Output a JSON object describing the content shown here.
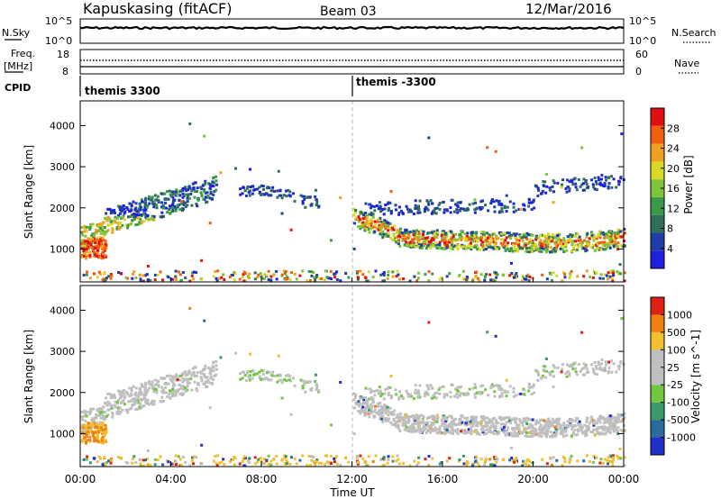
{
  "header": {
    "station": "Kapuskasing (fitACF)",
    "beam": "Beam 03",
    "date": "12/Mar/2016"
  },
  "top_panels": {
    "nsky_label": "N.Sky",
    "nsky_ticks": [
      "10^5",
      "10^0"
    ],
    "nsearch_label": "N.Search",
    "nsearch_ticks": [
      "10^5",
      "10^0"
    ],
    "freq_label": "Freq.",
    "freq_unit": "[MHz]",
    "freq_ticks": [
      "18",
      "8"
    ],
    "nave_label": "Nave",
    "nave_ticks": [
      "60",
      "0"
    ],
    "cpid_label": "CPID",
    "cpid_segments": [
      {
        "text": "themis 3300",
        "start_hour": 0
      },
      {
        "text": "themis -3300",
        "start_hour": 12
      }
    ]
  },
  "chart_data": [
    {
      "type": "heatmap",
      "name": "power",
      "ylabel": "Slant Range [km]",
      "yticks": [
        "4000",
        "3000",
        "2000",
        "1000"
      ],
      "ylim": [
        200,
        4600
      ],
      "xlim": [
        0,
        24
      ],
      "colorbar": {
        "label": "Power [dB]",
        "ticks": [
          "28",
          "24",
          "20",
          "16",
          "12",
          "8",
          "4"
        ],
        "colors": [
          "#1f1fe0",
          "#1f3ea8",
          "#2f6e5a",
          "#3a9a48",
          "#7cc43a",
          "#d8d828",
          "#f0a020",
          "#f06010",
          "#e01010"
        ]
      }
    },
    {
      "type": "heatmap",
      "name": "velocity",
      "ylabel": "Slant Range [km]",
      "yticks": [
        "4000",
        "3000",
        "2000",
        "1000"
      ],
      "ylim": [
        200,
        4600
      ],
      "xlim": [
        0,
        24
      ],
      "colorbar": {
        "label": "Velocity  [m s^-1]",
        "ticks": [
          "1000",
          "500",
          "100",
          "25",
          "-25",
          "-100",
          "-500",
          "-1000"
        ],
        "colors": [
          "#2030c8",
          "#2a6aa0",
          "#3a9a6a",
          "#70c840",
          "#bfbfbf",
          "#bfbfbf",
          "#f0c030",
          "#f08010",
          "#e02010"
        ]
      }
    }
  ],
  "x_axis": {
    "ticks": [
      "00:00",
      "04:00",
      "08:00",
      "12:00",
      "16:00",
      "20:00",
      "00:00"
    ],
    "label": "Time UT"
  }
}
